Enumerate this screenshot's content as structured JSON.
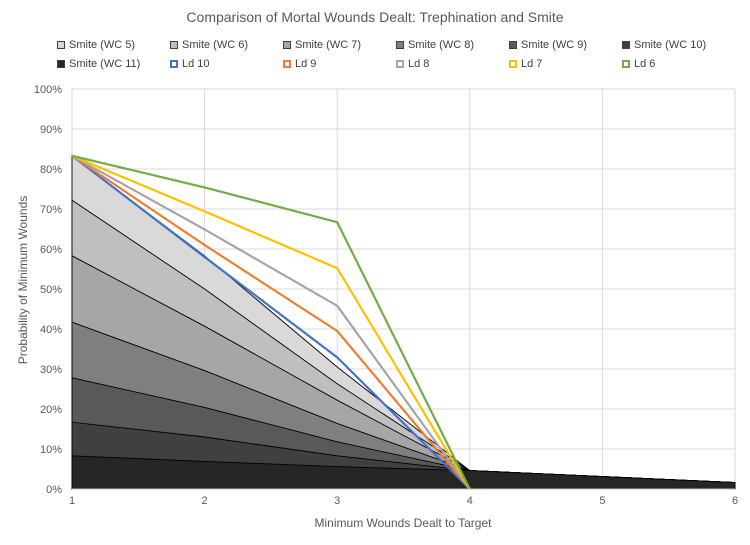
{
  "chart_data": {
    "type": "area",
    "title": "Comparison of Mortal Wounds Dealt: Trephination and Smite",
    "xlabel": "Minimum Wounds Dealt to Target",
    "ylabel": "Probability of Minimum Wounds",
    "x": [
      1,
      2,
      3,
      4,
      5,
      6
    ],
    "xlim": [
      1,
      6
    ],
    "ylim": [
      0,
      100
    ],
    "x_ticks": [
      "1",
      "2",
      "3",
      "4",
      "5",
      "6"
    ],
    "y_ticks": [
      "0%",
      "10%",
      "20%",
      "30%",
      "40%",
      "50%",
      "60%",
      "70%",
      "80%",
      "90%",
      "100%"
    ],
    "area_series": [
      {
        "name": "Smite (WC 5)",
        "color": "#d9d9d9",
        "values": [
          83.3,
          58.3,
          30.5,
          4.6,
          3.1,
          1.6
        ]
      },
      {
        "name": "Smite (WC 6)",
        "color": "#bfbfbf",
        "values": [
          72.2,
          50.0,
          26.3,
          4.6,
          3.1,
          1.6
        ]
      },
      {
        "name": "Smite (WC 7)",
        "color": "#a6a6a6",
        "values": [
          58.3,
          40.7,
          22.2,
          4.6,
          3.1,
          1.6
        ]
      },
      {
        "name": "Smite (WC 8)",
        "color": "#7f7f7f",
        "values": [
          41.7,
          29.6,
          16.4,
          4.6,
          3.1,
          1.6
        ]
      },
      {
        "name": "Smite (WC 9)",
        "color": "#595959",
        "values": [
          27.8,
          20.4,
          11.8,
          4.6,
          3.1,
          1.6
        ]
      },
      {
        "name": "Smite (WC 10)",
        "color": "#404040",
        "values": [
          16.7,
          13.0,
          8.3,
          4.6,
          3.1,
          1.6
        ]
      },
      {
        "name": "Smite (WC 11)",
        "color": "#262626",
        "values": [
          8.3,
          6.9,
          5.6,
          4.6,
          3.1,
          1.6
        ]
      }
    ],
    "line_series": [
      {
        "name": "Ld 10",
        "color": "#4472c4",
        "values": [
          83.3,
          58.0,
          32.9,
          0
        ]
      },
      {
        "name": "Ld 9",
        "color": "#ed7d31",
        "values": [
          83.3,
          61.0,
          39.5,
          0
        ]
      },
      {
        "name": "Ld 8",
        "color": "#a5a5a5",
        "values": [
          83.3,
          64.9,
          45.8,
          0
        ]
      },
      {
        "name": "Ld 7",
        "color": "#ffc000",
        "values": [
          83.3,
          69.4,
          55.2,
          0
        ]
      },
      {
        "name": "Ld 6",
        "color": "#70ad47",
        "values": [
          83.3,
          75.4,
          66.7,
          0
        ]
      }
    ],
    "legend": {
      "rows": [
        [
          "Smite (WC 5)",
          "Smite (WC 6)",
          "Smite (WC 7)",
          "Smite (WC 8)",
          "Smite (WC 9)",
          "Smite (WC 10)"
        ],
        [
          "Smite (WC 11)",
          "Ld 10",
          "Ld 9",
          "Ld 8",
          "Ld 7",
          "Ld 6"
        ]
      ],
      "placement": "top"
    },
    "grid": true
  }
}
